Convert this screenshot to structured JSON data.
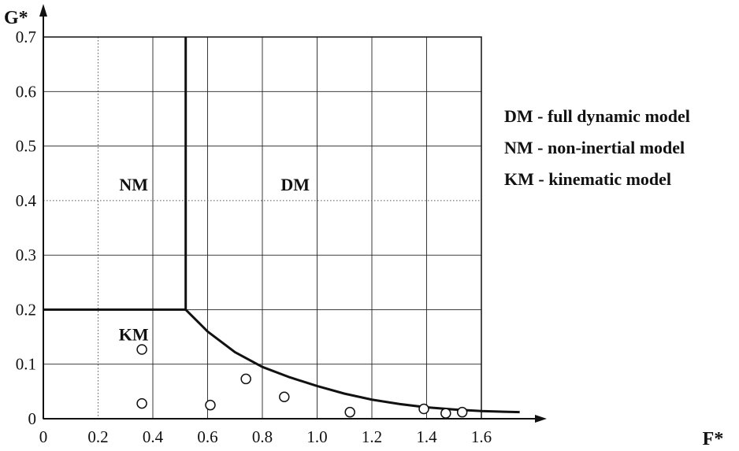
{
  "chart_data": {
    "type": "scatter",
    "xlabel": "F*",
    "ylabel": "G*",
    "xlim": [
      0,
      1.6
    ],
    "ylim": [
      0,
      0.7
    ],
    "x_ticks": [
      "0",
      "0.2",
      "0.4",
      "0.6",
      "0.8",
      "1.0",
      "1.2",
      "1.4",
      "1.6"
    ],
    "y_ticks": [
      "0",
      "0.1",
      "0.2",
      "0.3",
      "0.4",
      "0.5",
      "0.6",
      "0.7"
    ],
    "grid": true,
    "series": [
      {
        "points": [
          {
            "x": 0.36,
            "y": 0.127
          },
          {
            "x": 0.36,
            "y": 0.028
          },
          {
            "x": 0.61,
            "y": 0.025
          },
          {
            "x": 0.74,
            "y": 0.073
          },
          {
            "x": 0.88,
            "y": 0.04
          },
          {
            "x": 1.12,
            "y": 0.012
          },
          {
            "x": 1.39,
            "y": 0.018
          },
          {
            "x": 1.47,
            "y": 0.01
          },
          {
            "x": 1.53,
            "y": 0.012
          }
        ]
      }
    ],
    "boundaries": [
      {
        "points": [
          {
            "x": 0.0,
            "y": 0.2
          },
          {
            "x": 0.52,
            "y": 0.2
          }
        ]
      },
      {
        "points": [
          {
            "x": 0.52,
            "y": 0.2
          },
          {
            "x": 0.52,
            "y": 0.7
          }
        ]
      },
      {
        "points": [
          {
            "x": 0.52,
            "y": 0.2
          },
          {
            "x": 0.6,
            "y": 0.16
          },
          {
            "x": 0.7,
            "y": 0.122
          },
          {
            "x": 0.8,
            "y": 0.095
          },
          {
            "x": 0.9,
            "y": 0.076
          },
          {
            "x": 1.0,
            "y": 0.06
          },
          {
            "x": 1.1,
            "y": 0.046
          },
          {
            "x": 1.2,
            "y": 0.035
          },
          {
            "x": 1.3,
            "y": 0.027
          },
          {
            "x": 1.4,
            "y": 0.021
          },
          {
            "x": 1.5,
            "y": 0.017
          },
          {
            "x": 1.6,
            "y": 0.014
          },
          {
            "x": 1.74,
            "y": 0.012
          }
        ]
      }
    ],
    "regions": [
      {
        "label": "NM",
        "x": 0.33,
        "y": 0.43
      },
      {
        "label": "DM",
        "x": 0.92,
        "y": 0.43
      },
      {
        "label": "KM",
        "x": 0.33,
        "y": 0.155
      }
    ],
    "legend": {
      "placement": "right",
      "entries": [
        "DM - full dynamic model",
        "NM - non-inertial model",
        "KM - kinematic model"
      ]
    }
  }
}
